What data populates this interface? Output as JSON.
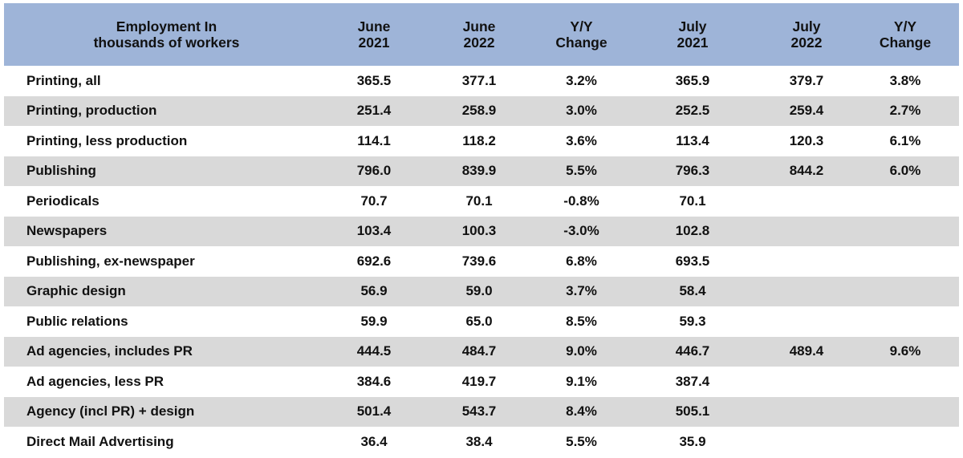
{
  "chart_data": {
    "type": "table",
    "columns": [
      {
        "line1": "Employment In",
        "line2": "thousands of workers"
      },
      {
        "line1": "June",
        "line2": "2021"
      },
      {
        "line1": "June",
        "line2": "2022"
      },
      {
        "line1": "Y/Y",
        "line2": "Change"
      },
      {
        "line1": "July",
        "line2": "2021"
      },
      {
        "line1": "July",
        "line2": "2022"
      },
      {
        "line1": "Y/Y",
        "line2": "Change"
      }
    ],
    "rows": [
      {
        "label": "Printing, all",
        "values": [
          "365.5",
          "377.1",
          "3.2%",
          "365.9",
          "379.7",
          "3.8%"
        ]
      },
      {
        "label": "Printing, production",
        "values": [
          "251.4",
          "258.9",
          "3.0%",
          "252.5",
          "259.4",
          "2.7%"
        ]
      },
      {
        "label": "Printing, less production",
        "values": [
          "114.1",
          "118.2",
          "3.6%",
          "113.4",
          "120.3",
          "6.1%"
        ]
      },
      {
        "label": "Publishing",
        "values": [
          "796.0",
          "839.9",
          "5.5%",
          "796.3",
          "844.2",
          "6.0%"
        ]
      },
      {
        "label": "Periodicals",
        "values": [
          "70.7",
          "70.1",
          "-0.8%",
          "70.1",
          "",
          ""
        ]
      },
      {
        "label": "Newspapers",
        "values": [
          "103.4",
          "100.3",
          "-3.0%",
          "102.8",
          "",
          ""
        ]
      },
      {
        "label": "Publishing, ex-newspaper",
        "values": [
          "692.6",
          "739.6",
          "6.8%",
          "693.5",
          "",
          ""
        ]
      },
      {
        "label": "Graphic design",
        "values": [
          "56.9",
          "59.0",
          "3.7%",
          "58.4",
          "",
          ""
        ]
      },
      {
        "label": "Public relations",
        "values": [
          "59.9",
          "65.0",
          "8.5%",
          "59.3",
          "",
          ""
        ]
      },
      {
        "label": "Ad agencies, includes PR",
        "values": [
          "444.5",
          "484.7",
          "9.0%",
          "446.7",
          "489.4",
          "9.6%"
        ]
      },
      {
        "label": "Ad agencies, less PR",
        "values": [
          "384.6",
          "419.7",
          "9.1%",
          "387.4",
          "",
          ""
        ]
      },
      {
        "label": "Agency (incl PR) + design",
        "values": [
          "501.4",
          "543.7",
          "8.4%",
          "505.1",
          "",
          ""
        ]
      },
      {
        "label": "Direct Mail Advertising",
        "values": [
          "36.4",
          "38.4",
          "5.5%",
          "35.9",
          "",
          ""
        ]
      }
    ]
  },
  "colors": {
    "header_bg": "#9eb4d8",
    "stripe_bg": "#d9d9d9",
    "text": "#111111"
  }
}
